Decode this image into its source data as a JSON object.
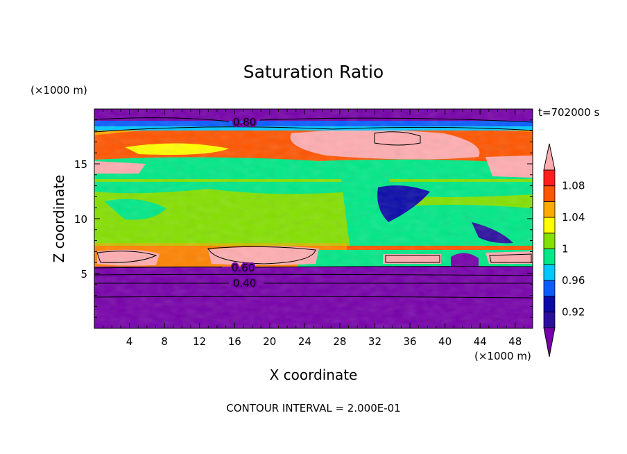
{
  "chart_data": {
    "type": "heatmap",
    "title": "Saturation Ratio",
    "xlabel": "X coordinate",
    "ylabel": "Z coordinate",
    "x_unit": "(×1000 m)",
    "y_unit": "(×1000 m)",
    "time_label": "t=702000 s",
    "footer": "CONTOUR INTERVAL = 2.000E-01",
    "xlim": [
      0,
      50
    ],
    "ylim": [
      0,
      20
    ],
    "x_ticks": [
      "4",
      "8",
      "12",
      "16",
      "20",
      "24",
      "28",
      "32",
      "36",
      "40",
      "44",
      "48"
    ],
    "y_ticks": [
      "5",
      "10",
      "15"
    ],
    "colorbar": {
      "labels": [
        "1.08",
        "1.04",
        "1",
        "0.96",
        "0.92"
      ],
      "levels": [
        0.9,
        0.92,
        0.94,
        0.96,
        0.98,
        1.0,
        1.02,
        1.04,
        1.06,
        1.08,
        1.1
      ],
      "colors": [
        "#2a0f9e",
        "#0a0aa8",
        "#0a5cff",
        "#00c8ff",
        "#00e887",
        "#84e000",
        "#ffff00",
        "#ffaa00",
        "#ff5500",
        "#ff1e1e"
      ],
      "under_color": "#7700aa",
      "over_color": "#ffadb0"
    },
    "contour_labels": [
      "0.80",
      "0.60",
      "0.40"
    ],
    "regions": [
      {
        "z_range": [
          0,
          5.5
        ],
        "value": "<0.90",
        "color": "#7700aa"
      },
      {
        "z_range": [
          5.5,
          7.5
        ],
        "value": "1.06-1.10+",
        "color": "#ff5500"
      },
      {
        "z_range": [
          7.5,
          13
        ],
        "value": "1.00-1.02",
        "color": "#84e000"
      },
      {
        "z_range": [
          13,
          18
        ],
        "value": "1.04-1.10+",
        "color": "#ffaa00"
      },
      {
        "z_range": [
          18,
          20
        ],
        "value": "<0.90",
        "color": "#7700aa"
      }
    ]
  }
}
